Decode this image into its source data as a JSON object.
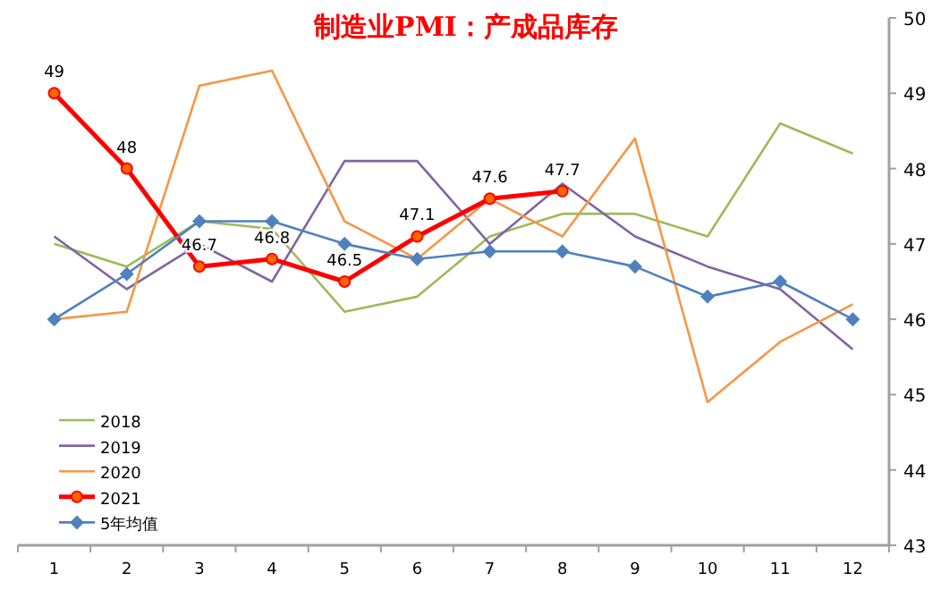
{
  "chart_data": {
    "type": "line",
    "title": "制造业PMI：产成品库存",
    "categories": [
      "1",
      "2",
      "3",
      "4",
      "5",
      "6",
      "7",
      "8",
      "9",
      "10",
      "11",
      "12"
    ],
    "ylim": [
      43,
      50
    ],
    "yticks": [
      43,
      44,
      45,
      46,
      47,
      48,
      49,
      50
    ],
    "grid": false,
    "legend": "bottom left",
    "series": [
      {
        "name": "2018",
        "color": "#9bbb59",
        "marker": "none",
        "values": [
          47.0,
          46.7,
          47.3,
          47.2,
          46.1,
          46.3,
          47.1,
          47.4,
          47.4,
          47.1,
          48.6,
          48.2
        ]
      },
      {
        "name": "2019",
        "color": "#8064a2",
        "marker": "none",
        "values": [
          47.1,
          46.4,
          47.0,
          46.5,
          48.1,
          48.1,
          47.0,
          47.8,
          47.1,
          46.7,
          46.4,
          45.6
        ]
      },
      {
        "name": "2020",
        "color": "#f79646",
        "marker": "none",
        "values": [
          46.0,
          46.1,
          49.1,
          49.3,
          47.3,
          46.8,
          47.6,
          47.1,
          48.4,
          44.9,
          45.7,
          46.2
        ]
      },
      {
        "name": "2021",
        "color": "#ff0000",
        "marker": "circle",
        "values": [
          49,
          48,
          46.7,
          46.8,
          46.5,
          47.1,
          47.6,
          47.7,
          null,
          null,
          null,
          null
        ],
        "value_labels": [
          "49",
          "48",
          "46.7",
          "46.8",
          "46.5",
          "47.1",
          "47.6",
          "47.7",
          null,
          null,
          null,
          null
        ]
      },
      {
        "name": "5年均值",
        "color": "#4f81bd",
        "marker": "diamond",
        "values": [
          46.0,
          46.6,
          47.3,
          47.3,
          47.0,
          46.8,
          46.9,
          46.9,
          46.7,
          46.3,
          46.5,
          46.0
        ]
      }
    ]
  }
}
